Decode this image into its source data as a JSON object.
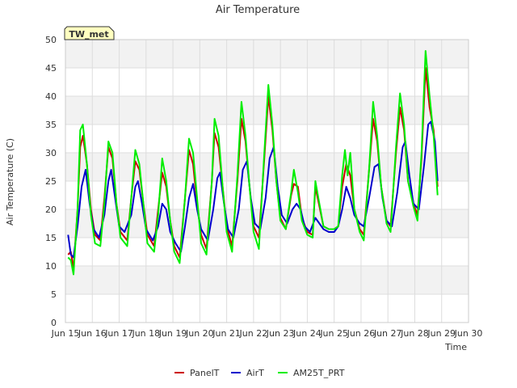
{
  "chart_data": {
    "type": "line",
    "title": "Air Temperature",
    "xlabel": "Time",
    "ylabel": "Air Temperature (C)",
    "badge": "TW_met",
    "ylim": [
      0,
      50
    ],
    "yticks": [
      0,
      5,
      10,
      15,
      20,
      25,
      30,
      35,
      40,
      45,
      50
    ],
    "xlim": [
      15,
      30
    ],
    "xticks": [
      {
        "x": 15,
        "label": "Jun 15"
      },
      {
        "x": 16,
        "label": "Jun 16"
      },
      {
        "x": 17,
        "label": "Jun 17"
      },
      {
        "x": 18,
        "label": "Jun 18"
      },
      {
        "x": 19,
        "label": "Jun 19"
      },
      {
        "x": 20,
        "label": "Jun 20"
      },
      {
        "x": 21,
        "label": "Jun 21"
      },
      {
        "x": 22,
        "label": "Jun 22"
      },
      {
        "x": 23,
        "label": "Jun 23"
      },
      {
        "x": 24,
        "label": "Jun 24"
      },
      {
        "x": 25,
        "label": "Jun 25"
      },
      {
        "x": 26,
        "label": "Jun 26"
      },
      {
        "x": 27,
        "label": "Jun 27"
      },
      {
        "x": 28,
        "label": "Jun 28"
      },
      {
        "x": 29,
        "label": "Jun 29"
      },
      {
        "x": 30,
        "label": "Jun 30"
      }
    ],
    "grid": true,
    "legend_position": "bottom",
    "series": [
      {
        "name": "PanelT",
        "color": "#cc0000",
        "points": [
          [
            15.1,
            12.0
          ],
          [
            15.2,
            12.5
          ],
          [
            15.3,
            9.5
          ],
          [
            15.45,
            20.0
          ],
          [
            15.55,
            31.0
          ],
          [
            15.65,
            33.0
          ],
          [
            15.8,
            28.0
          ],
          [
            15.95,
            20.0
          ],
          [
            16.1,
            15.5
          ],
          [
            16.3,
            14.5
          ],
          [
            16.45,
            22.0
          ],
          [
            16.6,
            31.0
          ],
          [
            16.75,
            29.0
          ],
          [
            16.9,
            21.0
          ],
          [
            17.05,
            16.0
          ],
          [
            17.3,
            14.5
          ],
          [
            17.45,
            22.0
          ],
          [
            17.6,
            28.5
          ],
          [
            17.75,
            27.0
          ],
          [
            17.9,
            21.0
          ],
          [
            18.05,
            15.5
          ],
          [
            18.3,
            13.5
          ],
          [
            18.45,
            20.0
          ],
          [
            18.6,
            26.5
          ],
          [
            18.75,
            24.0
          ],
          [
            18.9,
            18.0
          ],
          [
            19.05,
            13.5
          ],
          [
            19.25,
            11.5
          ],
          [
            19.45,
            22.0
          ],
          [
            19.6,
            30.5
          ],
          [
            19.75,
            28.0
          ],
          [
            19.9,
            21.0
          ],
          [
            20.05,
            15.5
          ],
          [
            20.25,
            13.0
          ],
          [
            20.45,
            25.0
          ],
          [
            20.55,
            33.5
          ],
          [
            20.7,
            31.0
          ],
          [
            20.85,
            24.0
          ],
          [
            21.0,
            17.0
          ],
          [
            21.2,
            13.5
          ],
          [
            21.4,
            25.0
          ],
          [
            21.55,
            36.0
          ],
          [
            21.7,
            32.0
          ],
          [
            21.85,
            24.0
          ],
          [
            22.0,
            17.0
          ],
          [
            22.2,
            15.0
          ],
          [
            22.4,
            29.0
          ],
          [
            22.55,
            40.0
          ],
          [
            22.7,
            34.0
          ],
          [
            22.85,
            25.0
          ],
          [
            23.0,
            18.5
          ],
          [
            23.2,
            16.5
          ],
          [
            23.4,
            22.5
          ],
          [
            23.5,
            24.5
          ],
          [
            23.65,
            24.0
          ],
          [
            23.8,
            18.5
          ],
          [
            24.0,
            16.0
          ],
          [
            24.2,
            15.5
          ],
          [
            24.3,
            24.0
          ],
          [
            24.45,
            20.5
          ],
          [
            24.6,
            17.0
          ],
          [
            24.8,
            16.5
          ],
          [
            25.0,
            16.5
          ],
          [
            25.15,
            17.0
          ],
          [
            25.3,
            24.0
          ],
          [
            25.45,
            28.0
          ],
          [
            25.6,
            26.0
          ],
          [
            25.75,
            20.0
          ],
          [
            25.95,
            16.5
          ],
          [
            26.1,
            15.5
          ],
          [
            26.3,
            27.0
          ],
          [
            26.45,
            36.0
          ],
          [
            26.6,
            32.0
          ],
          [
            26.75,
            24.0
          ],
          [
            26.95,
            18.0
          ],
          [
            27.1,
            17.0
          ],
          [
            27.3,
            30.0
          ],
          [
            27.45,
            38.0
          ],
          [
            27.6,
            34.0
          ],
          [
            27.75,
            25.0
          ],
          [
            27.95,
            21.0
          ],
          [
            28.1,
            19.0
          ],
          [
            28.25,
            29.0
          ],
          [
            28.4,
            45.0
          ],
          [
            28.55,
            38.0
          ],
          [
            28.7,
            34.0
          ],
          [
            28.85,
            24.0
          ]
        ]
      },
      {
        "name": "AirT",
        "color": "#0000cc",
        "points": [
          [
            15.1,
            15.5
          ],
          [
            15.2,
            12.0
          ],
          [
            15.3,
            11.5
          ],
          [
            15.45,
            17.0
          ],
          [
            15.6,
            24.0
          ],
          [
            15.75,
            27.0
          ],
          [
            15.9,
            21.0
          ],
          [
            16.05,
            16.5
          ],
          [
            16.25,
            15.0
          ],
          [
            16.45,
            19.0
          ],
          [
            16.6,
            25.0
          ],
          [
            16.7,
            27.0
          ],
          [
            16.85,
            22.0
          ],
          [
            17.0,
            17.0
          ],
          [
            17.2,
            16.0
          ],
          [
            17.45,
            19.0
          ],
          [
            17.6,
            24.0
          ],
          [
            17.7,
            25.0
          ],
          [
            17.85,
            21.0
          ],
          [
            18.0,
            16.5
          ],
          [
            18.25,
            14.5
          ],
          [
            18.45,
            17.0
          ],
          [
            18.6,
            21.0
          ],
          [
            18.75,
            20.0
          ],
          [
            18.9,
            16.0
          ],
          [
            19.1,
            14.0
          ],
          [
            19.3,
            12.5
          ],
          [
            19.45,
            17.0
          ],
          [
            19.6,
            22.0
          ],
          [
            19.75,
            24.5
          ],
          [
            19.9,
            20.0
          ],
          [
            20.05,
            16.5
          ],
          [
            20.3,
            14.5
          ],
          [
            20.5,
            20.0
          ],
          [
            20.65,
            25.5
          ],
          [
            20.75,
            26.5
          ],
          [
            20.9,
            21.0
          ],
          [
            21.05,
            16.5
          ],
          [
            21.25,
            15.0
          ],
          [
            21.45,
            20.0
          ],
          [
            21.6,
            27.0
          ],
          [
            21.75,
            28.5
          ],
          [
            21.9,
            22.0
          ],
          [
            22.05,
            17.5
          ],
          [
            22.25,
            16.5
          ],
          [
            22.45,
            22.0
          ],
          [
            22.6,
            29.0
          ],
          [
            22.75,
            31.0
          ],
          [
            22.9,
            24.0
          ],
          [
            23.05,
            19.0
          ],
          [
            23.25,
            17.5
          ],
          [
            23.45,
            20.0
          ],
          [
            23.6,
            21.0
          ],
          [
            23.75,
            20.0
          ],
          [
            23.9,
            17.0
          ],
          [
            24.1,
            16.0
          ],
          [
            24.3,
            18.5
          ],
          [
            24.45,
            17.5
          ],
          [
            24.6,
            16.5
          ],
          [
            24.8,
            16.0
          ],
          [
            25.0,
            16.0
          ],
          [
            25.15,
            17.0
          ],
          [
            25.3,
            20.0
          ],
          [
            25.45,
            24.0
          ],
          [
            25.6,
            22.0
          ],
          [
            25.75,
            19.0
          ],
          [
            25.95,
            17.5
          ],
          [
            26.1,
            17.0
          ],
          [
            26.3,
            22.0
          ],
          [
            26.5,
            27.5
          ],
          [
            26.65,
            28.0
          ],
          [
            26.8,
            22.0
          ],
          [
            26.95,
            18.0
          ],
          [
            27.15,
            17.0
          ],
          [
            27.35,
            23.0
          ],
          [
            27.55,
            31.0
          ],
          [
            27.65,
            32.0
          ],
          [
            27.8,
            26.0
          ],
          [
            27.95,
            21.0
          ],
          [
            28.15,
            20.0
          ],
          [
            28.35,
            28.0
          ],
          [
            28.5,
            35.0
          ],
          [
            28.6,
            35.5
          ],
          [
            28.75,
            32.0
          ],
          [
            28.85,
            25.0
          ]
        ]
      },
      {
        "name": "AM25T_PRT",
        "color": "#00ee00",
        "points": [
          [
            15.1,
            11.5
          ],
          [
            15.2,
            11.0
          ],
          [
            15.3,
            8.5
          ],
          [
            15.45,
            20.0
          ],
          [
            15.55,
            34.0
          ],
          [
            15.65,
            35.0
          ],
          [
            15.8,
            28.0
          ],
          [
            15.95,
            19.0
          ],
          [
            16.1,
            14.0
          ],
          [
            16.3,
            13.5
          ],
          [
            16.45,
            21.0
          ],
          [
            16.6,
            32.0
          ],
          [
            16.75,
            30.0
          ],
          [
            16.9,
            21.0
          ],
          [
            17.05,
            15.0
          ],
          [
            17.3,
            13.5
          ],
          [
            17.45,
            22.0
          ],
          [
            17.6,
            30.5
          ],
          [
            17.75,
            28.0
          ],
          [
            17.9,
            21.0
          ],
          [
            18.05,
            14.0
          ],
          [
            18.3,
            12.5
          ],
          [
            18.45,
            19.0
          ],
          [
            18.6,
            29.0
          ],
          [
            18.75,
            25.0
          ],
          [
            18.9,
            18.0
          ],
          [
            19.05,
            12.5
          ],
          [
            19.25,
            10.5
          ],
          [
            19.45,
            22.0
          ],
          [
            19.6,
            32.5
          ],
          [
            19.75,
            30.0
          ],
          [
            19.9,
            22.0
          ],
          [
            20.05,
            14.0
          ],
          [
            20.25,
            12.0
          ],
          [
            20.45,
            25.0
          ],
          [
            20.55,
            36.0
          ],
          [
            20.7,
            33.0
          ],
          [
            20.85,
            24.0
          ],
          [
            21.0,
            16.0
          ],
          [
            21.2,
            12.5
          ],
          [
            21.4,
            26.0
          ],
          [
            21.55,
            39.0
          ],
          [
            21.7,
            33.0
          ],
          [
            21.85,
            24.0
          ],
          [
            22.0,
            16.0
          ],
          [
            22.2,
            13.0
          ],
          [
            22.4,
            30.0
          ],
          [
            22.55,
            42.0
          ],
          [
            22.7,
            35.0
          ],
          [
            22.85,
            25.0
          ],
          [
            23.0,
            18.0
          ],
          [
            23.2,
            16.5
          ],
          [
            23.4,
            23.0
          ],
          [
            23.5,
            27.0
          ],
          [
            23.65,
            23.0
          ],
          [
            23.8,
            18.0
          ],
          [
            24.0,
            15.5
          ],
          [
            24.2,
            15.0
          ],
          [
            24.3,
            25.0
          ],
          [
            24.45,
            21.0
          ],
          [
            24.6,
            17.0
          ],
          [
            24.8,
            16.5
          ],
          [
            25.0,
            16.5
          ],
          [
            25.15,
            17.0
          ],
          [
            25.3,
            26.0
          ],
          [
            25.4,
            30.5
          ],
          [
            25.5,
            26.0
          ],
          [
            25.6,
            30.0
          ],
          [
            25.75,
            20.0
          ],
          [
            25.95,
            16.0
          ],
          [
            26.1,
            14.5
          ],
          [
            26.3,
            27.0
          ],
          [
            26.45,
            39.0
          ],
          [
            26.6,
            33.0
          ],
          [
            26.75,
            24.0
          ],
          [
            26.95,
            17.5
          ],
          [
            27.1,
            16.0
          ],
          [
            27.3,
            31.0
          ],
          [
            27.45,
            40.5
          ],
          [
            27.6,
            35.0
          ],
          [
            27.75,
            25.0
          ],
          [
            27.95,
            20.5
          ],
          [
            28.1,
            18.0
          ],
          [
            28.25,
            30.0
          ],
          [
            28.4,
            48.0
          ],
          [
            28.55,
            40.0
          ],
          [
            28.7,
            33.0
          ],
          [
            28.85,
            22.5
          ]
        ]
      }
    ]
  }
}
